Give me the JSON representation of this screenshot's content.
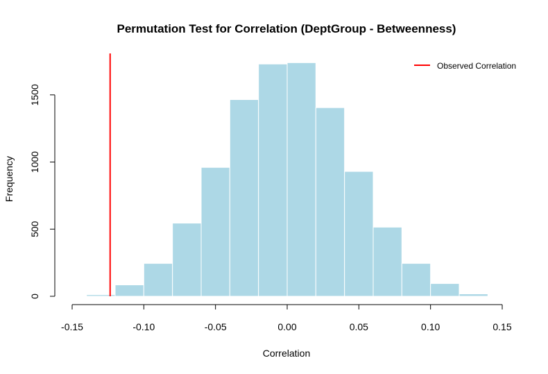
{
  "chart_data": {
    "type": "bar",
    "title": "Permutation Test for Correlation (DeptGroup - Betweenness)",
    "xlabel": "Correlation",
    "ylabel": "Frequency",
    "xlim": [
      -0.15,
      0.15
    ],
    "ylim": [
      0,
      1750
    ],
    "x_ticks": [
      -0.15,
      -0.1,
      -0.05,
      0.0,
      0.05,
      0.1,
      0.15
    ],
    "x_tick_labels": [
      "-0.15",
      "-0.10",
      "-0.05",
      "0.00",
      "0.05",
      "0.10",
      "0.15"
    ],
    "y_ticks": [
      0,
      500,
      1000,
      1500
    ],
    "y_tick_labels": [
      "0",
      "500",
      "1000",
      "1500"
    ],
    "bins": [
      {
        "start": -0.14,
        "end": -0.12,
        "count": 12
      },
      {
        "start": -0.12,
        "end": -0.1,
        "count": 85
      },
      {
        "start": -0.1,
        "end": -0.08,
        "count": 245
      },
      {
        "start": -0.08,
        "end": -0.06,
        "count": 545
      },
      {
        "start": -0.06,
        "end": -0.04,
        "count": 960
      },
      {
        "start": -0.04,
        "end": -0.02,
        "count": 1465
      },
      {
        "start": -0.02,
        "end": 0.0,
        "count": 1730
      },
      {
        "start": 0.0,
        "end": 0.02,
        "count": 1740
      },
      {
        "start": 0.02,
        "end": 0.04,
        "count": 1405
      },
      {
        "start": 0.04,
        "end": 0.06,
        "count": 930
      },
      {
        "start": 0.06,
        "end": 0.08,
        "count": 515
      },
      {
        "start": 0.08,
        "end": 0.1,
        "count": 245
      },
      {
        "start": 0.1,
        "end": 0.12,
        "count": 95
      },
      {
        "start": 0.12,
        "end": 0.14,
        "count": 18
      }
    ],
    "observed_correlation": -0.1235,
    "legend": {
      "label": "Observed Correlation",
      "position": "top-right"
    },
    "colors": {
      "bar_fill": "#add8e6",
      "bar_border": "#ffffff",
      "observed_line": "#ff0000"
    }
  }
}
